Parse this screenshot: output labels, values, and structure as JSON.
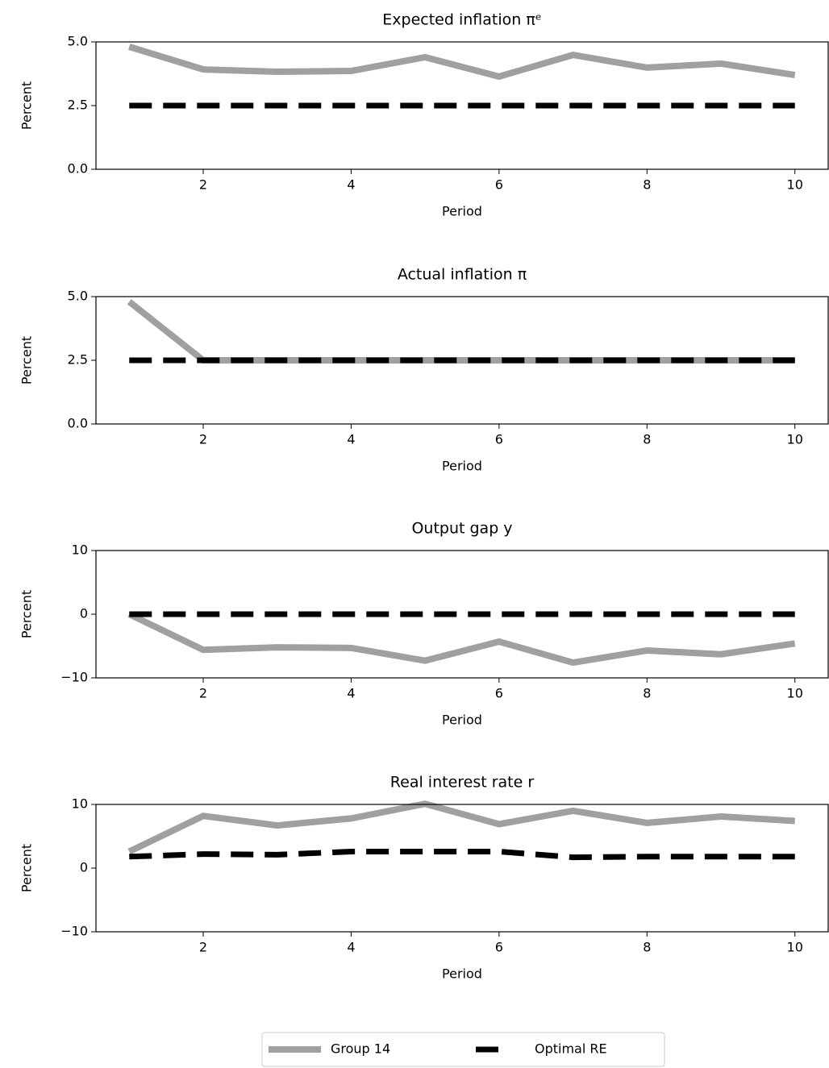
{
  "chart_data": [
    {
      "type": "line",
      "title": "Expected inflation πᵉ",
      "xlabel": "Period",
      "ylabel": "Percent",
      "x": [
        1,
        2,
        3,
        4,
        5,
        6,
        7,
        8,
        9,
        10
      ],
      "xlim": [
        0.55,
        10.45
      ],
      "xticks": [
        2,
        4,
        6,
        8,
        10
      ],
      "ylim": [
        0,
        5
      ],
      "yticks": [
        {
          "value": 0,
          "label": "0.0"
        },
        {
          "value": 2.5,
          "label": "2.5"
        },
        {
          "value": 5,
          "label": "5.0"
        }
      ],
      "series": [
        {
          "name": "Group 14",
          "color": "#a0a0a0",
          "values": [
            4.81,
            3.92,
            3.83,
            3.86,
            4.4,
            3.64,
            4.49,
            3.99,
            4.15,
            3.7
          ]
        },
        {
          "name": "Optimal RE",
          "color": "#000000",
          "dashed": true,
          "values": [
            2.5,
            2.5,
            2.5,
            2.5,
            2.5,
            2.5,
            2.5,
            2.5,
            2.5,
            2.5
          ]
        }
      ]
    },
    {
      "type": "line",
      "title": "Actual inflation π",
      "xlabel": "Period",
      "ylabel": "Percent",
      "x": [
        1,
        2,
        3,
        4,
        5,
        6,
        7,
        8,
        9,
        10
      ],
      "xlim": [
        0.55,
        10.45
      ],
      "xticks": [
        2,
        4,
        6,
        8,
        10
      ],
      "ylim": [
        0,
        5
      ],
      "yticks": [
        {
          "value": 0,
          "label": "0.0"
        },
        {
          "value": 2.5,
          "label": "2.5"
        },
        {
          "value": 5,
          "label": "5.0"
        }
      ],
      "series": [
        {
          "color": "#a0a0a0",
          "values": [
            4.8,
            2.5,
            2.5,
            2.5,
            2.5,
            2.5,
            2.5,
            2.5,
            2.5,
            2.5
          ]
        },
        {
          "color": "#000000",
          "dashed": true,
          "values": [
            2.5,
            2.5,
            2.5,
            2.5,
            2.5,
            2.5,
            2.5,
            2.5,
            2.5,
            2.5
          ]
        }
      ]
    },
    {
      "type": "line",
      "title": "Output gap y",
      "xlabel": "Period",
      "ylabel": "Percent",
      "x": [
        1,
        2,
        3,
        4,
        5,
        6,
        7,
        8,
        9,
        10
      ],
      "xlim": [
        0.55,
        10.45
      ],
      "xticks": [
        2,
        4,
        6,
        8,
        10
      ],
      "ylim": [
        -10,
        10
      ],
      "yticks": [
        {
          "value": -10,
          "label": "−10"
        },
        0,
        10
      ],
      "series": [
        {
          "color": "#a0a0a0",
          "values": [
            0,
            -5.6,
            -5.2,
            -5.3,
            -7.3,
            -4.3,
            -7.6,
            -5.7,
            -6.3,
            -4.6
          ]
        },
        {
          "color": "#000000",
          "dashed": true,
          "values": [
            0,
            0,
            0,
            0,
            0,
            0,
            0,
            0,
            0,
            0
          ]
        }
      ]
    },
    {
      "type": "line",
      "title": "Real interest rate r",
      "xlabel": "Period",
      "ylabel": "Percent",
      "x": [
        1,
        2,
        3,
        4,
        5,
        6,
        7,
        8,
        9,
        10
      ],
      "xlim": [
        0.55,
        10.45
      ],
      "xticks": [
        2,
        4,
        6,
        8,
        10
      ],
      "ylim": [
        -10,
        10
      ],
      "yticks": [
        {
          "value": -10,
          "label": "−10"
        },
        0,
        10
      ],
      "series": [
        {
          "color": "#a0a0a0",
          "values": [
            2.6,
            8.2,
            6.7,
            7.8,
            10.1,
            6.9,
            9.0,
            7.1,
            8.1,
            7.4
          ]
        },
        {
          "color": "#000000",
          "dashed": true,
          "values": [
            1.8,
            2.2,
            2.1,
            2.6,
            2.6,
            2.6,
            1.7,
            1.8,
            1.8,
            1.8
          ]
        }
      ]
    }
  ]
}
